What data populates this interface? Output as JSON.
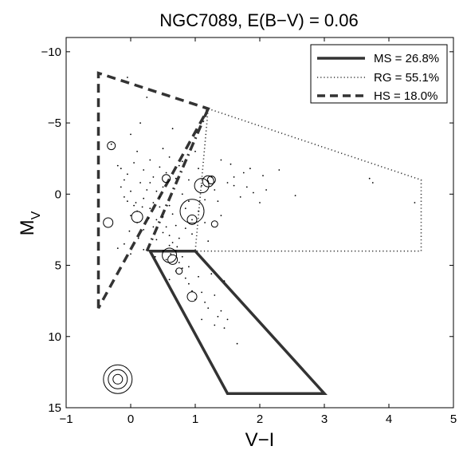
{
  "chart_data": {
    "type": "scatter",
    "title": "NGC7089,  E(B−V) = 0.06",
    "xlabel": "V−I",
    "ylabel_main": "M",
    "ylabel_sub": "V",
    "xlim": [
      -1,
      5
    ],
    "ylim": [
      15,
      -11
    ],
    "y_reversed": true,
    "xticks": [
      -1,
      0,
      1,
      2,
      3,
      4,
      5
    ],
    "xtick_labels": [
      "−1",
      "0",
      "1",
      "2",
      "3",
      "4",
      "5"
    ],
    "yticks": [
      -10,
      -5,
      0,
      5,
      10,
      15
    ],
    "ytick_labels": [
      "−10",
      "−5",
      "0",
      "5",
      "10",
      "15"
    ],
    "grid": false,
    "legend_position": "top-right",
    "legend": [
      {
        "label": "MS = 26.8%",
        "style": "solid"
      },
      {
        "label": "RG = 55.1%",
        "style": "dotted"
      },
      {
        "label": "HS = 18.0%",
        "style": "dashed"
      }
    ],
    "regions": [
      {
        "name": "MS",
        "style": "solid",
        "points": [
          [
            0.3,
            4
          ],
          [
            1,
            4
          ],
          [
            3,
            14
          ],
          [
            1.5,
            14
          ]
        ]
      },
      {
        "name": "RG",
        "style": "dotted",
        "points": [
          [
            1.2,
            -6
          ],
          [
            4.5,
            -1
          ],
          [
            4.5,
            4
          ],
          [
            1,
            4
          ]
        ]
      },
      {
        "name": "HS",
        "style": "dashed",
        "points": [
          [
            -0.5,
            8
          ],
          [
            -0.5,
            -8.5
          ],
          [
            1.2,
            -6
          ]
        ]
      },
      {
        "name": "HS-boundary",
        "style": "dashdot",
        "points": [
          [
            1.2,
            -6
          ],
          [
            0.25,
            4
          ]
        ]
      }
    ],
    "points": [
      [
        -0.3,
        -3.5
      ],
      [
        -0.2,
        -2.0
      ],
      [
        -0.1,
        -1.0
      ],
      [
        -0.15,
        -0.5
      ],
      [
        -0.1,
        0.2
      ],
      [
        -0.05,
        0.5
      ],
      [
        0.0,
        -0.2
      ],
      [
        0.05,
        0.8
      ],
      [
        0.1,
        1.2
      ],
      [
        0.0,
        1.5
      ],
      [
        0.15,
        -0.8
      ],
      [
        0.2,
        0.3
      ],
      [
        0.25,
        -0.3
      ],
      [
        0.3,
        1.0
      ],
      [
        0.35,
        0.6
      ],
      [
        0.1,
        2.0
      ],
      [
        0.2,
        2.5
      ],
      [
        0.4,
        1.8
      ],
      [
        0.45,
        0.2
      ],
      [
        0.5,
        -0.5
      ],
      [
        0.55,
        -1.5
      ],
      [
        0.6,
        0.8
      ],
      [
        0.65,
        1.4
      ],
      [
        0.7,
        2.2
      ],
      [
        0.75,
        -2.0
      ],
      [
        0.8,
        0.0
      ],
      [
        0.85,
        1.0
      ],
      [
        0.9,
        -1.0
      ],
      [
        0.95,
        2.8
      ],
      [
        1.0,
        -3.0
      ],
      [
        1.05,
        -1.8
      ],
      [
        1.1,
        -0.6
      ],
      [
        1.15,
        0.4
      ],
      [
        1.2,
        -0.9
      ],
      [
        1.25,
        -1.2
      ],
      [
        1.3,
        -0.3
      ],
      [
        1.35,
        0.5
      ],
      [
        1.4,
        1.5
      ],
      [
        1.5,
        -0.8
      ],
      [
        1.6,
        -1.2
      ],
      [
        1.7,
        0.2
      ],
      [
        1.8,
        -0.5
      ],
      [
        1.9,
        -0.1
      ],
      [
        2.0,
        0.6
      ],
      [
        2.1,
        -0.3
      ],
      [
        2.3,
        -1.7
      ],
      [
        2.55,
        0.1
      ],
      [
        3.7,
        -1.1
      ],
      [
        3.75,
        -0.8
      ],
      [
        4.4,
        0.6
      ],
      [
        0.3,
        -0.8
      ],
      [
        0.35,
        -1.2
      ],
      [
        0.4,
        -0.2
      ],
      [
        0.45,
        0.9
      ],
      [
        0.5,
        1.6
      ],
      [
        0.55,
        2.3
      ],
      [
        0.6,
        2.9
      ],
      [
        0.65,
        3.4
      ],
      [
        0.7,
        4.0
      ],
      [
        0.75,
        4.8
      ],
      [
        0.8,
        5.2
      ],
      [
        0.85,
        5.9
      ],
      [
        0.9,
        6.3
      ],
      [
        0.95,
        6.8
      ],
      [
        1.0,
        7.4
      ],
      [
        1.1,
        6.9
      ],
      [
        1.15,
        7.6
      ],
      [
        1.2,
        8.0
      ],
      [
        1.3,
        7.1
      ],
      [
        1.35,
        8.6
      ],
      [
        1.4,
        8.2
      ],
      [
        1.5,
        8.8
      ],
      [
        1.45,
        6.1
      ],
      [
        1.25,
        5.6
      ],
      [
        1.05,
        5.8
      ],
      [
        0.9,
        5.1
      ],
      [
        0.8,
        4.4
      ],
      [
        0.7,
        5.4
      ],
      [
        0.6,
        6.0
      ],
      [
        0.55,
        4.6
      ],
      [
        0.0,
        -4.2
      ],
      [
        0.25,
        -6.8
      ],
      [
        -0.05,
        -8.2
      ],
      [
        0.15,
        -5.0
      ],
      [
        0.5,
        -3.2
      ],
      [
        0.65,
        -4.6
      ],
      [
        0.1,
        -3.0
      ],
      [
        -0.2,
        3.8
      ],
      [
        -0.1,
        3.5
      ],
      [
        0.0,
        4.2
      ],
      [
        0.2,
        3.9
      ],
      [
        0.4,
        3.2
      ],
      [
        0.5,
        2.7
      ],
      [
        0.6,
        3.6
      ],
      [
        0.75,
        3.1
      ],
      [
        0.85,
        2.4
      ],
      [
        0.95,
        1.8
      ],
      [
        1.05,
        1.2
      ],
      [
        1.15,
        2.0
      ],
      [
        1.2,
        3.3
      ],
      [
        1.4,
        -2.4
      ],
      [
        1.55,
        -2.1
      ],
      [
        1.6,
        -0.6
      ],
      [
        1.75,
        -1.5
      ],
      [
        1.85,
        -1.8
      ],
      [
        2.05,
        -1.3
      ],
      [
        1.65,
        10.5
      ],
      [
        1.45,
        9.4
      ],
      [
        1.3,
        9.2
      ],
      [
        1.1,
        8.8
      ],
      [
        -0.15,
        -1.8
      ],
      [
        -0.05,
        -1.4
      ],
      [
        0.05,
        -2.2
      ],
      [
        0.2,
        -1.7
      ],
      [
        0.3,
        -2.4
      ],
      [
        0.45,
        -1.9
      ],
      [
        0.6,
        -2.6
      ],
      [
        0.7,
        -1.1
      ],
      [
        0.8,
        -2.3
      ],
      [
        0.9,
        0.5
      ],
      [
        0.35,
        2.3
      ],
      [
        0.28,
        1.7
      ],
      [
        0.18,
        0.9
      ],
      [
        0.08,
        0.6
      ],
      [
        -0.02,
        2.6
      ],
      [
        0.12,
        3.1
      ],
      [
        0.38,
        4.4
      ],
      [
        0.5,
        4.0
      ],
      [
        0.62,
        4.2
      ],
      [
        0.72,
        3.7
      ]
    ],
    "circles": [
      {
        "x": -0.3,
        "y": -3.4,
        "r": 5
      },
      {
        "x": -0.35,
        "y": 2.0,
        "r": 6
      },
      {
        "x": 0.1,
        "y": 1.6,
        "r": 7
      },
      {
        "x": 0.55,
        "y": -1.1,
        "r": 5
      },
      {
        "x": 0.95,
        "y": 1.2,
        "r": 15
      },
      {
        "x": 0.95,
        "y": 1.8,
        "r": 6
      },
      {
        "x": 1.1,
        "y": -0.6,
        "r": 9
      },
      {
        "x": 1.2,
        "y": -0.9,
        "r": 7
      },
      {
        "x": 1.25,
        "y": -1.0,
        "r": 5
      },
      {
        "x": 1.3,
        "y": 2.1,
        "r": 4
      },
      {
        "x": 0.6,
        "y": 4.3,
        "r": 9
      },
      {
        "x": 0.65,
        "y": 4.6,
        "r": 6
      },
      {
        "x": 0.75,
        "y": 5.4,
        "r": 4
      },
      {
        "x": 0.95,
        "y": 7.2,
        "r": 6
      }
    ],
    "size_key": {
      "x": -0.2,
      "y": 13.0,
      "radii": [
        18,
        12,
        6
      ]
    }
  }
}
